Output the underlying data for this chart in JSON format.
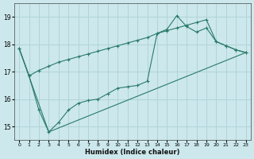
{
  "title": "",
  "xlabel": "Humidex (Indice chaleur)",
  "ylabel": "",
  "bg_color": "#cce8ec",
  "line_color": "#2a7a6a",
  "grid_color": "#b0d4d8",
  "x_ticks": [
    0,
    1,
    2,
    3,
    4,
    5,
    6,
    7,
    8,
    9,
    10,
    11,
    12,
    13,
    14,
    15,
    16,
    17,
    18,
    19,
    20,
    21,
    22,
    23
  ],
  "y_ticks": [
    15,
    16,
    17,
    18,
    19
  ],
  "xlim": [
    -0.5,
    23.5
  ],
  "ylim": [
    14.5,
    19.5
  ],
  "line1_x": [
    0,
    1,
    2,
    3,
    4,
    5,
    6,
    7,
    8,
    9,
    10,
    11,
    12,
    13,
    14,
    15,
    16,
    17,
    18,
    19,
    20,
    21,
    22,
    23
  ],
  "line1_y": [
    17.85,
    16.85,
    17.05,
    17.2,
    17.35,
    17.45,
    17.55,
    17.65,
    17.75,
    17.85,
    17.95,
    18.05,
    18.15,
    18.25,
    18.4,
    18.5,
    18.6,
    18.7,
    18.8,
    18.9,
    18.1,
    17.95,
    17.8,
    17.7
  ],
  "line2_x": [
    0,
    1,
    2,
    3,
    4,
    5,
    6,
    7,
    8,
    9,
    10,
    11,
    12,
    13,
    14,
    15,
    16,
    17,
    18,
    19,
    20,
    21,
    22,
    23
  ],
  "line2_y": [
    17.85,
    16.85,
    15.6,
    14.8,
    15.15,
    15.6,
    15.85,
    15.95,
    16.0,
    16.2,
    16.4,
    16.45,
    16.5,
    16.65,
    18.4,
    18.55,
    19.05,
    18.65,
    18.45,
    18.6,
    18.1,
    17.95,
    17.8,
    17.7
  ],
  "line3_x": [
    0,
    3,
    23
  ],
  "line3_y": [
    17.85,
    14.8,
    17.7
  ]
}
